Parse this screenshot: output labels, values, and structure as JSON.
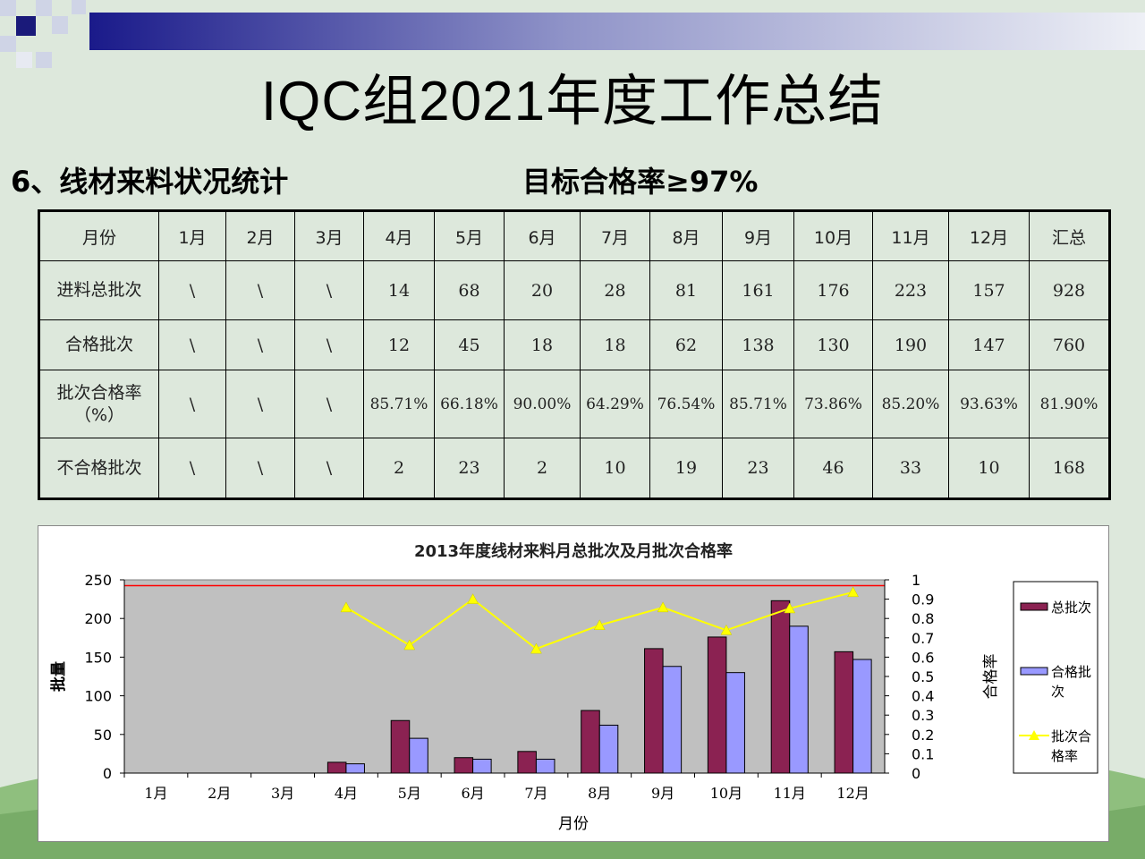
{
  "slide": {
    "title": "IQC组2021年度工作总结",
    "section_heading": "6、线材来料状况统计",
    "target": "目标合格率≥97%"
  },
  "table": {
    "header": [
      "月份",
      "1月",
      "2月",
      "3月",
      "4月",
      "5月",
      "6月",
      "7月",
      "8月",
      "9月",
      "10月",
      "11月",
      "12月",
      "汇总"
    ],
    "rows": [
      {
        "label": "进料总批次",
        "cells": [
          "\\",
          "\\",
          "\\",
          "14",
          "68",
          "20",
          "28",
          "81",
          "161",
          "176",
          "223",
          "157",
          "928"
        ]
      },
      {
        "label": "合格批次",
        "cells": [
          "\\",
          "\\",
          "\\",
          "12",
          "45",
          "18",
          "18",
          "62",
          "138",
          "130",
          "190",
          "147",
          "760"
        ]
      },
      {
        "label": "批次合格率（%）",
        "cells": [
          "\\",
          "\\",
          "\\",
          "85.71%",
          "66.18%",
          "90.00%",
          "64.29%",
          "76.54%",
          "85.71%",
          "73.86%",
          "85.20%",
          "93.63%",
          "81.90%"
        ]
      },
      {
        "label": "不合格批次",
        "cells": [
          "\\",
          "\\",
          "\\",
          "2",
          "23",
          "2",
          "10",
          "19",
          "23",
          "46",
          "33",
          "10",
          "168"
        ]
      }
    ]
  },
  "chart_data": {
    "type": "bar",
    "title": "2013年度线材来料月总批次及月批次合格率",
    "xlabel": "月份",
    "ylabel": "批量",
    "y2label": "合格率",
    "categories": [
      "1月",
      "2月",
      "3月",
      "4月",
      "5月",
      "6月",
      "7月",
      "8月",
      "9月",
      "10月",
      "11月",
      "12月"
    ],
    "ylim": [
      0,
      250
    ],
    "y_ticks": [
      "0",
      "50",
      "100",
      "150",
      "200",
      "250"
    ],
    "y2lim": [
      0,
      1
    ],
    "y2_ticks": [
      "0",
      "0.1",
      "0.2",
      "0.3",
      "0.4",
      "0.5",
      "0.6",
      "0.7",
      "0.8",
      "0.9",
      "1"
    ],
    "series": [
      {
        "name": "总批次",
        "kind": "bar",
        "color": "#8b2252",
        "values": [
          0,
          0,
          0,
          14,
          68,
          20,
          28,
          81,
          161,
          176,
          223,
          157
        ]
      },
      {
        "name": "合格批次",
        "kind": "bar",
        "color": "#9999ff",
        "values": [
          0,
          0,
          0,
          12,
          45,
          18,
          18,
          62,
          138,
          130,
          190,
          147
        ]
      },
      {
        "name": "批次合格率",
        "kind": "line",
        "axis": "right",
        "color": "#ffff00",
        "values": [
          null,
          null,
          null,
          0.857,
          0.662,
          0.9,
          0.643,
          0.765,
          0.857,
          0.739,
          0.852,
          0.936
        ]
      }
    ],
    "target_line": {
      "value": 0.97,
      "color": "#ff0000"
    },
    "plot_bg": "#c0c0c0",
    "legend_position": "right"
  }
}
